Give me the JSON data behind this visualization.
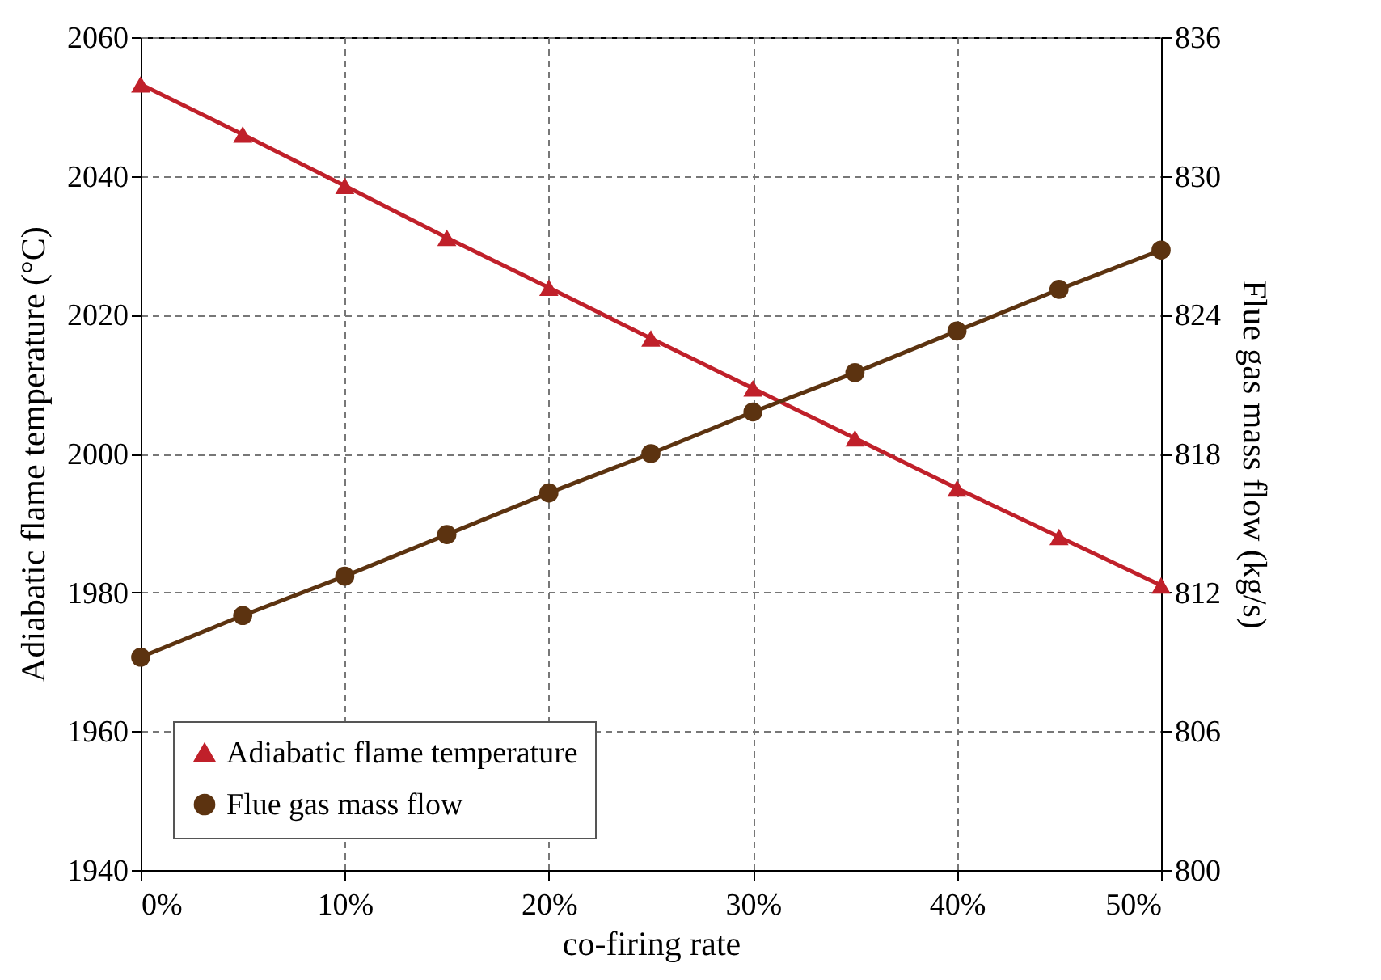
{
  "chart_data": {
    "type": "line",
    "xlabel": "co-firing rate",
    "ylabel": "Adiabatic flame temperature (°C)",
    "y2label": "Flue gas mass flow (kg/s)",
    "x": [
      0,
      5,
      10,
      15,
      20,
      25,
      30,
      35,
      40,
      45,
      50
    ],
    "xlim": [
      0,
      50
    ],
    "xticks": [
      {
        "value": 0,
        "label": "0%"
      },
      {
        "value": 10,
        "label": "10%"
      },
      {
        "value": 20,
        "label": "20%"
      },
      {
        "value": 30,
        "label": "30%"
      },
      {
        "value": 40,
        "label": "40%"
      },
      {
        "value": 50,
        "label": "50%"
      }
    ],
    "ylim": [
      1940,
      2060
    ],
    "yticks": [
      1940,
      1960,
      1980,
      2000,
      2020,
      2040,
      2060
    ],
    "y2lim": [
      800,
      836
    ],
    "y2ticks": [
      800,
      806,
      812,
      818,
      824,
      830,
      836
    ],
    "series": [
      {
        "name": "Adiabatic flame temperature",
        "color": "#c0202a",
        "marker": "triangle",
        "values": [
          2053.2,
          2046.0,
          2038.6,
          2031.1,
          2023.9,
          2016.6,
          2009.4,
          2002.2,
          1995.0,
          1988.0,
          1981.0
        ]
      },
      {
        "name": "Flue gas mass flow",
        "color": "#5c3310",
        "marker": "circle",
        "axis": "y2",
        "values": [
          809.2,
          811.0,
          812.7,
          814.5,
          816.3,
          818.0,
          819.8,
          821.5,
          823.3,
          825.1,
          826.8
        ]
      }
    ],
    "grid": true,
    "line_style": "solid",
    "legend": "bottom left"
  }
}
